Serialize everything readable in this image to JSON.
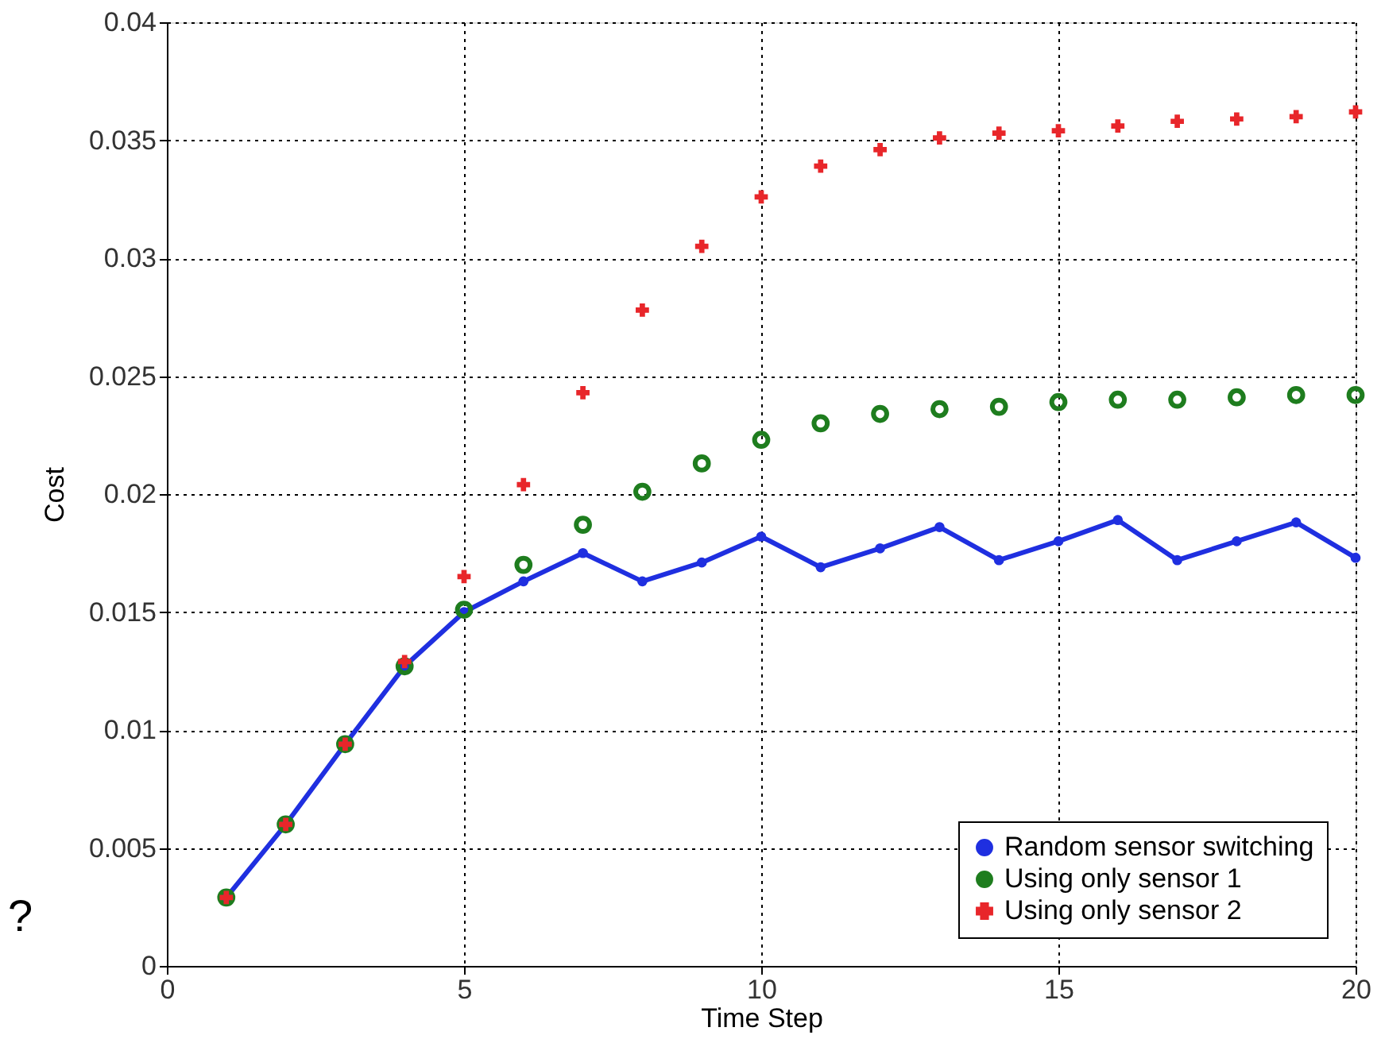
{
  "chart_data": {
    "type": "line",
    "xlabel": "Time Step",
    "ylabel": "Cost",
    "x": [
      1,
      2,
      3,
      4,
      5,
      6,
      7,
      8,
      9,
      10,
      11,
      12,
      13,
      14,
      15,
      16,
      17,
      18,
      19,
      20
    ],
    "xlim": [
      0,
      20
    ],
    "xticks": [
      0,
      5,
      10,
      15,
      20
    ],
    "ylim": [
      0,
      0.04
    ],
    "yticks": [
      0,
      0.005,
      0.01,
      0.015,
      0.02,
      0.025,
      0.03,
      0.035,
      0.04
    ],
    "grid": true,
    "legend": "bottom right",
    "annotations": [
      "?"
    ],
    "series": [
      {
        "name": "Random sensor switching",
        "color": "#1f2fe0",
        "marker": "circle",
        "line_style": "solid",
        "values": [
          0.0029,
          0.006,
          0.0094,
          0.0127,
          0.015,
          0.0163,
          0.0175,
          0.0163,
          0.0171,
          0.0182,
          0.0169,
          0.0177,
          0.0186,
          0.0172,
          0.018,
          0.0189,
          0.0172,
          0.018,
          0.0188,
          0.0173
        ]
      },
      {
        "name": "Using only sensor 1",
        "type": "scatter",
        "color": "#1e7d1e",
        "marker": "circle",
        "values": [
          0.0029,
          0.006,
          0.0094,
          0.0127,
          0.0151,
          0.017,
          0.0187,
          0.0201,
          0.0213,
          0.0223,
          0.023,
          0.0234,
          0.0236,
          0.0237,
          0.0239,
          0.024,
          0.024,
          0.0241,
          0.0242,
          0.0242
        ]
      },
      {
        "name": "Using only sensor 2",
        "type": "scatter",
        "color": "#e8262a",
        "marker": "cross",
        "values": [
          0.0029,
          0.006,
          0.0094,
          0.0129,
          0.0165,
          0.0204,
          0.0243,
          0.0278,
          0.0305,
          0.0326,
          0.0339,
          0.0346,
          0.0351,
          0.0353,
          0.0354,
          0.0356,
          0.0358,
          0.0359,
          0.036,
          0.0362
        ]
      }
    ]
  }
}
